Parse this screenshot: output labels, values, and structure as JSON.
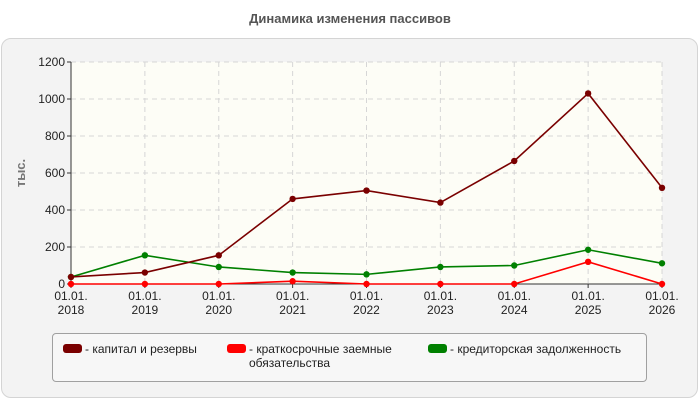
{
  "chart_data": {
    "type": "line",
    "title": "Динамика изменения пассивов",
    "ylabel": "тыс.",
    "xlabel": "",
    "categories": [
      [
        "01.01.",
        "2018"
      ],
      [
        "01.01.",
        "2019"
      ],
      [
        "01.01.",
        "2020"
      ],
      [
        "01.01.",
        "2021"
      ],
      [
        "01.01.",
        "2022"
      ],
      [
        "01.01.",
        "2023"
      ],
      [
        "01.01.",
        "2024"
      ],
      [
        "01.01.",
        "2025"
      ],
      [
        "01.01.",
        "2026"
      ]
    ],
    "ylim": [
      0,
      1200
    ],
    "yticks": [
      0,
      200,
      400,
      600,
      800,
      1000,
      1200
    ],
    "grid": true,
    "legend_position": "bottom",
    "series": [
      {
        "name": "- капитал и резервы",
        "color": "#7a0000",
        "values": [
          38,
          62,
          155,
          460,
          505,
          440,
          665,
          1030,
          520
        ]
      },
      {
        "name": "- краткосрочные заемные обязательства",
        "color": "#ff0000",
        "values": [
          0,
          0,
          0,
          15,
          0,
          0,
          0,
          120,
          0
        ]
      },
      {
        "name": "- кредиторская задолженность",
        "color": "#008000",
        "values": [
          38,
          155,
          92,
          62,
          52,
          92,
          100,
          185,
          112
        ]
      }
    ]
  }
}
